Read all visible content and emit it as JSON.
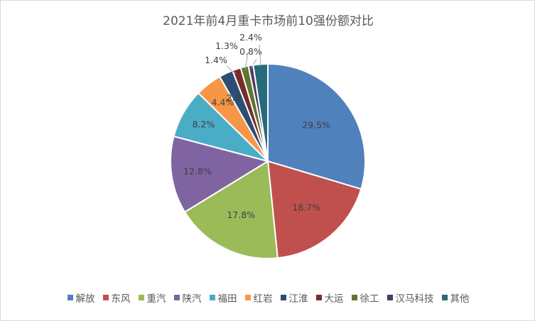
{
  "chart_data": {
    "type": "pie",
    "title": "2021年前4月重卡市场前10强份额对比",
    "categories": [
      "解放",
      "东风",
      "重汽",
      "陕汽",
      "福田",
      "红岩",
      "江淮",
      "大运",
      "徐工",
      "汉马科技",
      "其他"
    ],
    "values": [
      29.5,
      18.7,
      17.8,
      12.8,
      8.2,
      4.4,
      2.3,
      1.4,
      1.3,
      0.8,
      2.4
    ],
    "data_labels": [
      "29.5%",
      "18.7%",
      "17.8%",
      "12.8%",
      "8.2%",
      "4.4%",
      "2.3%",
      "1.4%",
      "1.3%",
      "0.8%",
      "2.4%"
    ],
    "colors": [
      "#4F81BD",
      "#C0504D",
      "#9BBB59",
      "#8064A2",
      "#4BACC6",
      "#F79646",
      "#2C4D75",
      "#772C2A",
      "#5F7530",
      "#4D3B62",
      "#276A7C"
    ],
    "legend_position": "bottom",
    "start_angle": "12 o'clock, clockwise"
  }
}
